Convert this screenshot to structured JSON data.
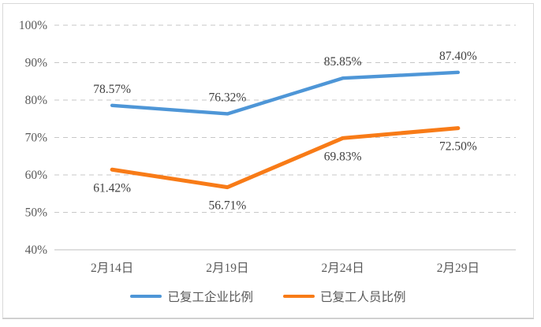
{
  "chart": {
    "background": "#FFFFFF",
    "border_color": "#D9D9D9",
    "grid_color": "#C7C7C7",
    "axis_line_color": "#BFBFBF",
    "tick_text_color": "#595959",
    "data_label_color": "#404040",
    "legend_text_color": "#595959"
  },
  "chart_data": {
    "type": "line",
    "categories": [
      "2月14日",
      "2月19日",
      "2月24日",
      "2月29日"
    ],
    "series": [
      {
        "name": "已复工企业比例",
        "color": "#4E96D7",
        "values": [
          78.57,
          76.32,
          85.85,
          87.4
        ],
        "data_labels": [
          "78.57%",
          "76.32%",
          "85.85%",
          "87.40%"
        ],
        "label_position": "above"
      },
      {
        "name": "已复工人员比例",
        "color": "#F87B17",
        "values": [
          61.42,
          56.71,
          69.83,
          72.5
        ],
        "data_labels": [
          "61.42%",
          "56.71%",
          "69.83%",
          "72.50%"
        ],
        "label_position": "below"
      }
    ],
    "y_axis": {
      "min": 40,
      "max": 100,
      "step": 10,
      "tick_labels": [
        "40%",
        "50%",
        "60%",
        "70%",
        "80%",
        "90%",
        "100%"
      ]
    },
    "grid": "horizontal-dashed",
    "legend_position": "bottom"
  }
}
